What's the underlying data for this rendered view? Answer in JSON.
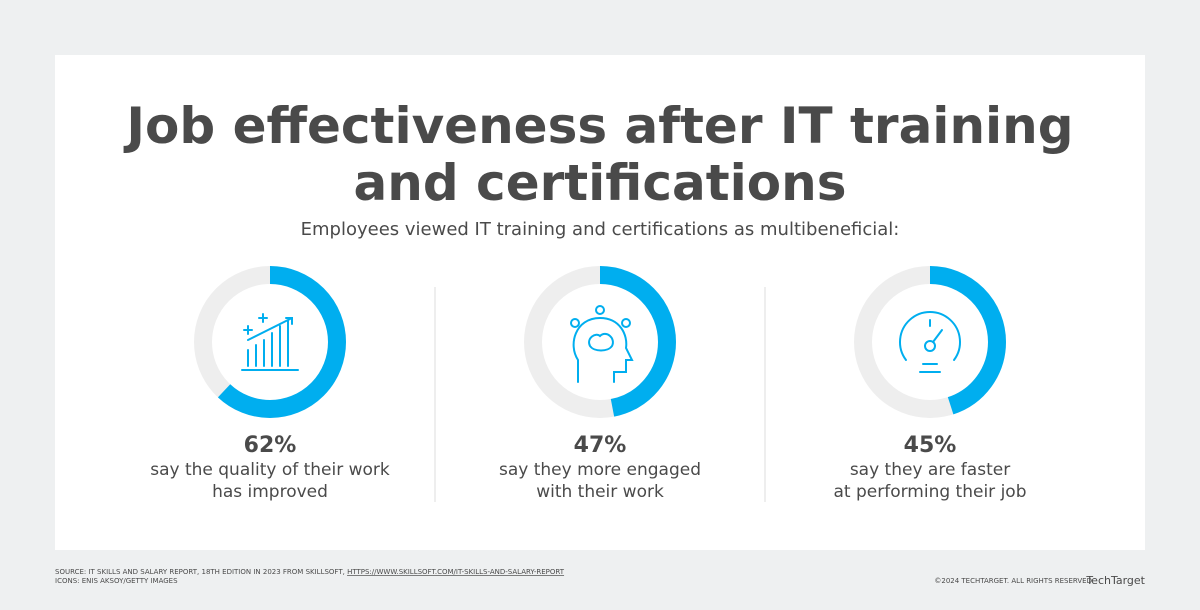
{
  "title": [
    "Job effectiveness after IT training",
    "and certifications"
  ],
  "subtitle": "Employees viewed IT training and certifications as multibeneficial:",
  "chart_data": [
    {
      "type": "donut",
      "values": [
        62
      ],
      "value_labels": [
        "62%"
      ],
      "caption": [
        "say the quality of their work",
        "has improved"
      ],
      "color": "#00aeef",
      "track_color": "#eeeeee"
    },
    {
      "type": "donut",
      "values": [
        47
      ],
      "value_labels": [
        "47%"
      ],
      "caption": [
        "say they more engaged",
        "with their work"
      ],
      "color": "#00aeef",
      "track_color": "#eeeeee"
    },
    {
      "type": "donut",
      "values": [
        45
      ],
      "value_labels": [
        "45%"
      ],
      "caption": [
        "say they are faster",
        "at performing their job"
      ],
      "color": "#00aeef",
      "track_color": "#eeeeee"
    }
  ],
  "footer": {
    "source": "SOURCE: IT SKILLS AND SALARY REPORT, 18TH EDITION IN 2023 FROM SKILLSOFT,",
    "url": "HTTPS://WWW.SKILLSOFT.COM/IT-SKILLS-AND-SALARY-REPORT",
    "icons": "ICONS: ENIS AKSOY/GETTY IMAGES",
    "copyright": "©2024 TECHTARGET. ALL RIGHTS RESERVED",
    "brand": "TechTarget"
  }
}
